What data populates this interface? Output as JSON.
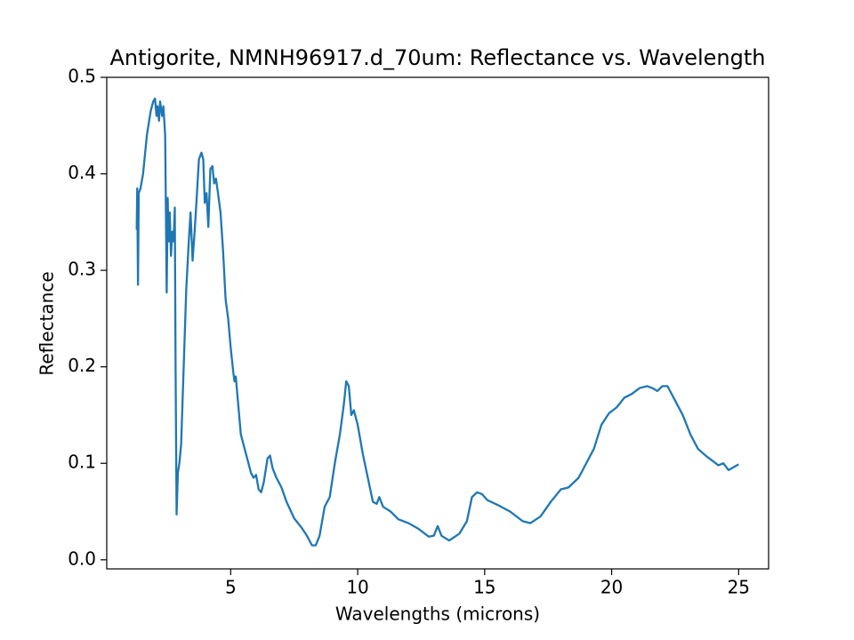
{
  "chart_data": {
    "type": "line",
    "title": "Antigorite, NMNH96917.d_70um: Reflectance vs. Wavelength",
    "x_label": "Wavelengths (microns)",
    "y_label": "Reflectance",
    "xlim": [
      0.12,
      26.18
    ],
    "ylim": [
      -0.0094,
      0.5
    ],
    "xticks": [
      5,
      10,
      15,
      20,
      25
    ],
    "yticks": [
      {
        "value": 0,
        "label": "0.0"
      },
      0.1,
      0.2,
      0.3,
      0.4,
      0.5
    ],
    "grid": false,
    "series": [
      {
        "color": "#1f77b4",
        "x": [
          1.3,
          1.32,
          1.35,
          1.38,
          1.45,
          1.55,
          1.7,
          1.85,
          1.95,
          2.02,
          2.08,
          2.12,
          2.18,
          2.22,
          2.3,
          2.35,
          2.42,
          2.45,
          2.48,
          2.52,
          2.56,
          2.6,
          2.65,
          2.7,
          2.75,
          2.8,
          2.83,
          2.87,
          2.92,
          2.98,
          3.05,
          3.15,
          3.25,
          3.35,
          3.42,
          3.5,
          3.58,
          3.65,
          3.75,
          3.85,
          3.92,
          3.98,
          4.05,
          4.12,
          4.2,
          4.28,
          4.35,
          4.42,
          4.5,
          4.6,
          4.7,
          4.8,
          4.9,
          5.0,
          5.1,
          5.15,
          5.2,
          5.3,
          5.4,
          5.5,
          5.6,
          5.7,
          5.8,
          5.9,
          6.0,
          6.1,
          6.2,
          6.3,
          6.45,
          6.55,
          6.65,
          6.8,
          7.0,
          7.2,
          7.5,
          7.8,
          8.0,
          8.2,
          8.35,
          8.5,
          8.7,
          8.9,
          9.1,
          9.3,
          9.45,
          9.55,
          9.65,
          9.75,
          9.85,
          10.0,
          10.2,
          10.4,
          10.6,
          10.75,
          10.85,
          11.0,
          11.3,
          11.6,
          12.0,
          12.4,
          12.8,
          13.0,
          13.15,
          13.3,
          13.6,
          14.0,
          14.3,
          14.5,
          14.7,
          14.9,
          15.1,
          15.5,
          16.0,
          16.5,
          16.8,
          17.2,
          17.6,
          18.0,
          18.3,
          18.7,
          19.0,
          19.3,
          19.6,
          19.9,
          20.2,
          20.5,
          20.8,
          21.1,
          21.4,
          21.6,
          21.8,
          22.0,
          22.2,
          22.5,
          22.8,
          23.1,
          23.4,
          23.7,
          24.0,
          24.2,
          24.4,
          24.6,
          24.8,
          25.0
        ],
        "values": [
          0.342,
          0.385,
          0.285,
          0.38,
          0.385,
          0.4,
          0.44,
          0.465,
          0.475,
          0.478,
          0.46,
          0.47,
          0.455,
          0.475,
          0.46,
          0.47,
          0.44,
          0.36,
          0.277,
          0.375,
          0.33,
          0.36,
          0.315,
          0.34,
          0.33,
          0.365,
          0.2,
          0.047,
          0.09,
          0.1,
          0.12,
          0.2,
          0.28,
          0.33,
          0.36,
          0.31,
          0.34,
          0.37,
          0.415,
          0.422,
          0.415,
          0.37,
          0.38,
          0.345,
          0.405,
          0.408,
          0.39,
          0.395,
          0.38,
          0.36,
          0.32,
          0.27,
          0.25,
          0.22,
          0.195,
          0.185,
          0.19,
          0.16,
          0.13,
          0.12,
          0.11,
          0.1,
          0.09,
          0.085,
          0.088,
          0.073,
          0.07,
          0.08,
          0.105,
          0.108,
          0.095,
          0.085,
          0.075,
          0.06,
          0.043,
          0.033,
          0.025,
          0.015,
          0.015,
          0.025,
          0.055,
          0.065,
          0.1,
          0.13,
          0.16,
          0.185,
          0.18,
          0.15,
          0.155,
          0.14,
          0.11,
          0.085,
          0.06,
          0.058,
          0.065,
          0.055,
          0.05,
          0.042,
          0.038,
          0.032,
          0.024,
          0.025,
          0.035,
          0.025,
          0.02,
          0.027,
          0.04,
          0.065,
          0.07,
          0.068,
          0.062,
          0.057,
          0.05,
          0.04,
          0.038,
          0.045,
          0.06,
          0.073,
          0.075,
          0.085,
          0.1,
          0.115,
          0.14,
          0.152,
          0.158,
          0.168,
          0.172,
          0.178,
          0.18,
          0.178,
          0.175,
          0.18,
          0.18,
          0.165,
          0.15,
          0.13,
          0.115,
          0.108,
          0.102,
          0.098,
          0.1,
          0.093,
          0.096,
          0.099
        ]
      }
    ]
  }
}
